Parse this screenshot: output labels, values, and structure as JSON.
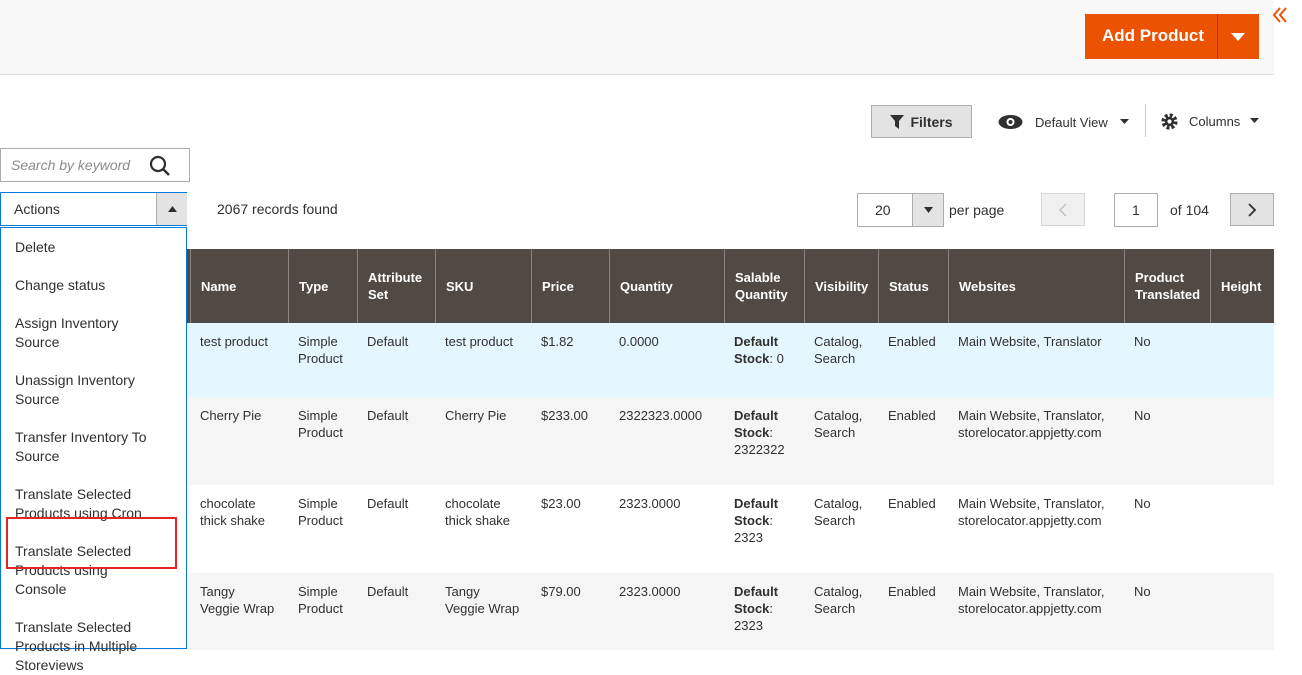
{
  "header": {
    "button": "Add Product"
  },
  "toolbar": {
    "filters": "Filters",
    "view": "Default View",
    "columns": "Columns"
  },
  "search": {
    "placeholder": "Search by keyword"
  },
  "actions": {
    "label": "Actions",
    "items": [
      "Delete",
      "Change status",
      "Assign Inventory Source",
      "Unassign Inventory Source",
      "Transfer Inventory To Source",
      "Translate Selected Products using Cron",
      "Translate Selected Products using Console",
      "Translate Selected Products in Multiple Storeviews"
    ]
  },
  "records": "2067 records found",
  "pagination": {
    "per_page": "20",
    "per_page_label": "per page",
    "page": "1",
    "of": "of 104"
  },
  "table": {
    "columns": [
      "Name",
      "Type",
      "Attribute Set",
      "SKU",
      "Price",
      "Quantity",
      "Salable Quantity",
      "Visibility",
      "Status",
      "Websites",
      "Product Translated",
      "Height"
    ],
    "rows": [
      [
        "test product",
        "Simple Product",
        "Default",
        "test product",
        "$1.82",
        "0.0000",
        {
          "label": "Default Stock",
          "rest": ": 0"
        },
        "Catalog, Search",
        "Enabled",
        "Main Website, Translator",
        "No"
      ],
      [
        "Cherry Pie",
        "Simple Product",
        "Default",
        "Cherry Pie",
        "$233.00",
        "2322323.0000",
        {
          "label": "Default Stock",
          "rest": ": 2322322"
        },
        "Catalog, Search",
        "Enabled",
        "Main Website, Translator, storelocator.appjetty.com",
        "No"
      ],
      [
        "chocolate thick shake",
        "Simple Product",
        "Default",
        "chocolate thick shake",
        "$23.00",
        "2323.0000",
        {
          "label": "Default Stock",
          "rest": ": 2323"
        },
        "Catalog, Search",
        "Enabled",
        "Main Website, Translator, storelocator.appjetty.com",
        "No"
      ],
      [
        "Tangy Veggie Wrap",
        "Simple Product",
        "Default",
        "Tangy Veggie Wrap",
        "$79.00",
        "2323.0000",
        {
          "label": "Default Stock",
          "rest": ": 2323"
        },
        "Catalog, Search",
        "Enabled",
        "Main Website, Translator, storelocator.appjetty.com",
        "No"
      ]
    ]
  }
}
